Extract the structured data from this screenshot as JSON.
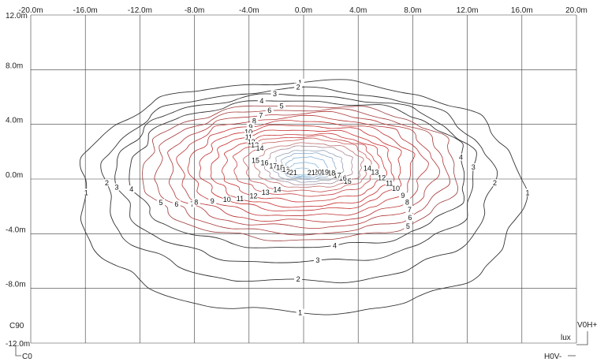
{
  "chart_data": {
    "type": "contour",
    "xlabel": "",
    "ylabel": "",
    "xlim": [
      -20,
      20
    ],
    "ylim": [
      -12,
      12
    ],
    "x_ticks": [
      "-20.0m",
      "-16.0m",
      "-12.0m",
      "-8.0m",
      "-4.0m",
      "0.0m",
      "4.0m",
      "8.0m",
      "12.0m",
      "16.0m",
      "20.0m"
    ],
    "y_ticks": [
      "12.0m",
      "8.0m",
      "4.0m",
      "0.0m",
      "-4.0m",
      "-8.0m",
      "-12.0m"
    ],
    "grid": true,
    "unit": "lux",
    "corner_labels": {
      "top_left": "C90",
      "bottom_left": "C0",
      "top_right": "V0H+",
      "bottom_right": "H0V-"
    },
    "peak_value": 21,
    "peak_location": [
      -0.7,
      0.4
    ],
    "levels": [
      {
        "value": 1,
        "color": "#333333",
        "extent_x": [
          -16.4,
          15.9
        ],
        "extent_y": [
          -9.1,
          7.1
        ]
      },
      {
        "value": 2,
        "color": "#333333",
        "extent_x": [
          -14.6,
          13.8
        ],
        "extent_y": [
          -7.1,
          6.5
        ]
      },
      {
        "value": 3,
        "color": "#333333",
        "extent_x": [
          -13.6,
          12.6
        ],
        "extent_y": [
          -5.8,
          6.1
        ]
      },
      {
        "value": 4,
        "color": "#333333",
        "extent_x": [
          -12.6,
          11.9
        ],
        "extent_y": [
          -4.8,
          5.7
        ]
      },
      {
        "value": 5,
        "color": "#9b3a3a",
        "extent_x": [
          -11.7,
          11.2
        ],
        "extent_y": [
          -4.3,
          5.4
        ]
      },
      {
        "value": 6,
        "color": "#a63838",
        "extent_x": [
          -10.8,
          10.4
        ],
        "extent_y": [
          -3.9,
          5.1
        ]
      },
      {
        "value": 7,
        "color": "#b03535",
        "extent_x": [
          -9.9,
          9.6
        ],
        "extent_y": [
          -3.5,
          4.8
        ]
      },
      {
        "value": 8,
        "color": "#b83333",
        "extent_x": [
          -9.1,
          8.8
        ],
        "extent_y": [
          -3.1,
          4.5
        ]
      },
      {
        "value": 9,
        "color": "#c03030",
        "extent_x": [
          -8.3,
          8.0
        ],
        "extent_y": [
          -2.7,
          4.2
        ]
      },
      {
        "value": 10,
        "color": "#c42e2e",
        "extent_x": [
          -7.5,
          7.2
        ],
        "extent_y": [
          -2.3,
          3.9
        ]
      },
      {
        "value": 11,
        "color": "#c82c2c",
        "extent_x": [
          -6.7,
          6.5
        ],
        "extent_y": [
          -2.0,
          3.6
        ]
      },
      {
        "value": 12,
        "color": "#c83535",
        "extent_x": [
          -5.9,
          5.9
        ],
        "extent_y": [
          -1.6,
          3.3
        ]
      },
      {
        "value": 13,
        "color": "#c84545",
        "extent_x": [
          -5.1,
          5.3
        ],
        "extent_y": [
          -1.2,
          3.1
        ]
      },
      {
        "value": 14,
        "color": "#c85a5a",
        "extent_x": [
          -4.3,
          4.8
        ],
        "extent_y": [
          -0.9,
          2.9
        ]
      },
      {
        "value": 15,
        "color": "#c07070",
        "extent_x": [
          -3.5,
          4.3
        ],
        "extent_y": [
          -0.6,
          2.6
        ]
      },
      {
        "value": 16,
        "color": "#a88a96",
        "extent_x": [
          -2.8,
          3.6
        ],
        "extent_y": [
          -0.4,
          2.4
        ]
      },
      {
        "value": 17,
        "color": "#94a0b8",
        "extent_x": [
          -2.2,
          2.9
        ],
        "extent_y": [
          -0.2,
          2.1
        ]
      },
      {
        "value": 18,
        "color": "#8aa8c8",
        "extent_x": [
          -1.7,
          2.3
        ],
        "extent_y": [
          0.0,
          1.9
        ]
      },
      {
        "value": 19,
        "color": "#88b0d0",
        "extent_x": [
          -1.3,
          1.7
        ],
        "extent_y": [
          0.1,
          1.6
        ]
      },
      {
        "value": 20,
        "color": "#88b8d8",
        "extent_x": [
          -1.0,
          1.1
        ],
        "extent_y": [
          0.2,
          1.2
        ]
      },
      {
        "value": 21,
        "color": "#8ac0e0",
        "extent_x": [
          -0.8,
          0.6
        ],
        "extent_y": [
          0.3,
          0.8
        ]
      }
    ]
  }
}
